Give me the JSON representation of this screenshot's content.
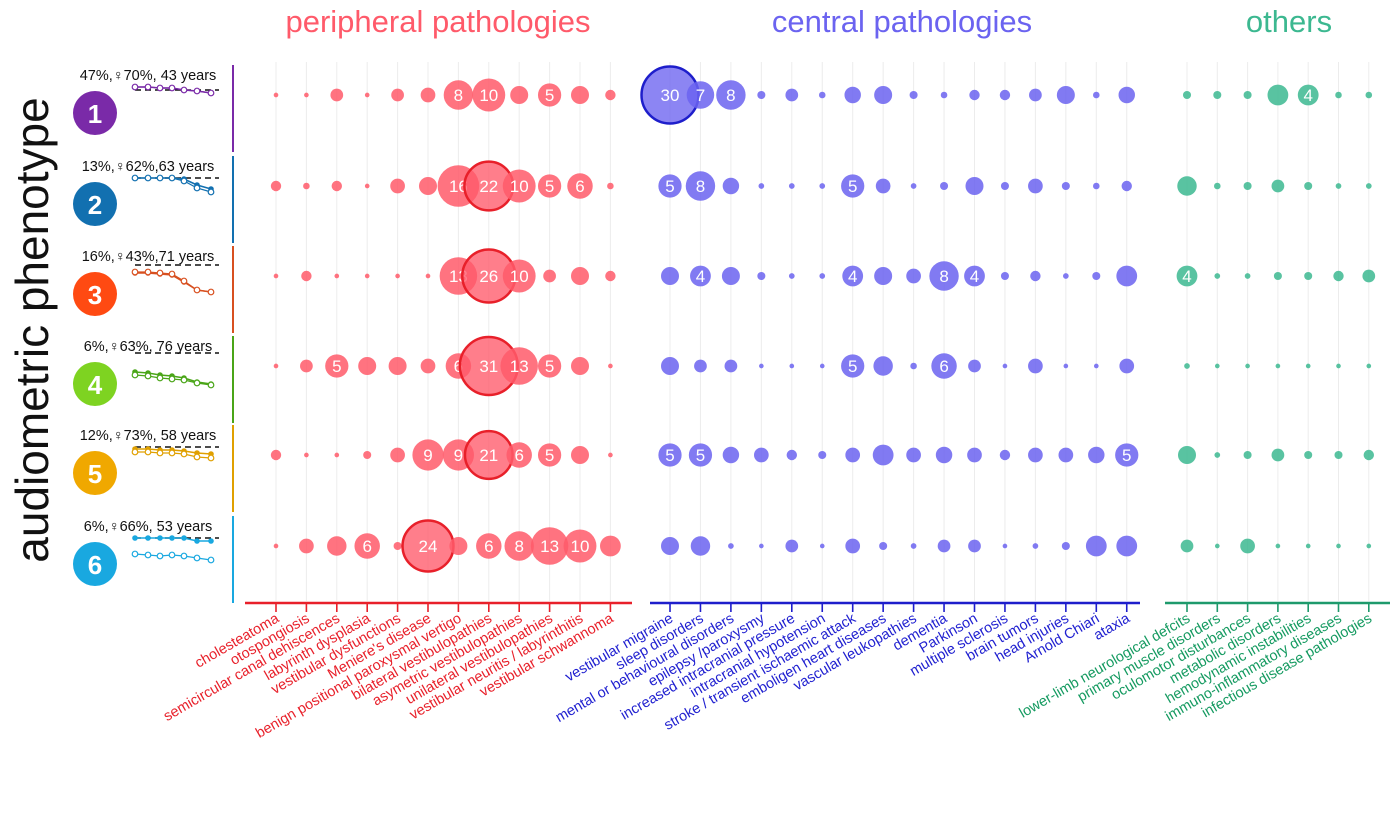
{
  "y_axis_title": "audiometric phenotype",
  "groups": [
    {
      "label": "peripheral pathologies",
      "color": "#ff5a6a",
      "axis_color": "#e8202a",
      "text_color": "#e8202a"
    },
    {
      "label": "central pathologies",
      "color": "#6b63f0",
      "axis_color": "#1e1ecb",
      "text_color": "#2020d0"
    },
    {
      "label": "others",
      "color": "#3cb890",
      "axis_color": "#1e9a6c",
      "text_color": "#149a60"
    }
  ],
  "phenotypes": [
    {
      "number": "1",
      "label": "47%,♀70%, 43 years",
      "color": "#7a2aa8",
      "line_color": "#7a2aa8",
      "hearing": {
        "ref_y": 3,
        "air": [
          0,
          0,
          1,
          1,
          3,
          4,
          6
        ],
        "bone": [
          0,
          0,
          1,
          1,
          3,
          4,
          6
        ]
      }
    },
    {
      "number": "2",
      "label": "13%,♀62%,63 years",
      "color": "#1270b0",
      "line_color": "#1270b0",
      "hearing": {
        "ref_y": 0,
        "air": [
          0,
          0,
          0,
          0,
          1,
          7,
          11
        ],
        "bone": [
          0,
          0,
          0,
          0,
          3,
          10,
          14
        ]
      }
    },
    {
      "number": "3",
      "label": "16%,♀43%,71 years",
      "color": "#ff4a12",
      "line_color": "#d85020",
      "hearing": {
        "ref_y": -3,
        "air": [
          5,
          5,
          6,
          7,
          14,
          22,
          24
        ],
        "bone": [
          4,
          4,
          5,
          6,
          13,
          22,
          24
        ]
      }
    },
    {
      "number": "4",
      "label": "6%,♀63%, 76 years",
      "color": "#7ed321",
      "line_color": "#4aa518",
      "hearing": {
        "ref_y": -5,
        "air": [
          14,
          15,
          17,
          18,
          20,
          24,
          26
        ],
        "bone": [
          17,
          18,
          20,
          21,
          22,
          25,
          27
        ]
      }
    },
    {
      "number": "5",
      "label": "12%,♀73%, 58 years",
      "color": "#f0a800",
      "line_color": "#e0a000",
      "hearing": {
        "ref_y": 0,
        "air": [
          2,
          2,
          3,
          3,
          4,
          6,
          7
        ],
        "bone": [
          5,
          5,
          6,
          6,
          7,
          10,
          11
        ]
      }
    },
    {
      "number": "6",
      "label": "6%,♀66%, 53 years",
      "color": "#19a8e0",
      "line_color": "#19a8e0",
      "hearing": {
        "ref_y": 0,
        "air": [
          0,
          0,
          0,
          0,
          0,
          3,
          3
        ],
        "bone": [
          16,
          17,
          18,
          17,
          18,
          20,
          22
        ]
      }
    }
  ],
  "chart_data": {
    "type": "scatter",
    "subtype": "bubble",
    "y_axis_label": "audiometric phenotype",
    "rows": [
      "1",
      "2",
      "3",
      "4",
      "5",
      "6"
    ],
    "grid": "vertical gridlines",
    "columns": [
      {
        "name": "cholesteatoma",
        "group": 0
      },
      {
        "name": "otospongiosis",
        "group": 0
      },
      {
        "name": "semicircular canal dehiscences",
        "group": 0
      },
      {
        "name": "labyrinth dysplasia",
        "group": 0
      },
      {
        "name": "vestibular dysfunctions",
        "group": 0
      },
      {
        "name": "Meniere's disease",
        "group": 0
      },
      {
        "name": "benign positional paroxysmal vertigo",
        "group": 0
      },
      {
        "name": "bilateral vestibulopathies",
        "group": 0
      },
      {
        "name": "asymetric vestibulopathies",
        "group": 0
      },
      {
        "name": "unilateral vestibulopathies",
        "group": 0
      },
      {
        "name": "vestibular neuritis / labyrinthitis",
        "group": 0
      },
      {
        "name": "vestibular schwannoma",
        "group": 0
      },
      {
        "name": "vestibular migraine",
        "group": 1
      },
      {
        "name": "sleep disorders",
        "group": 1
      },
      {
        "name": "mental or behavioural disorders",
        "group": 1
      },
      {
        "name": "epilepsy /paroxysmy",
        "group": 1
      },
      {
        "name": "increased intracranial pressure",
        "group": 1
      },
      {
        "name": "intracranial hypotension",
        "group": 1
      },
      {
        "name": "stroke / transient ischaemic attack",
        "group": 1
      },
      {
        "name": "emboligen heart diseases",
        "group": 1
      },
      {
        "name": "vascular leukopathies",
        "group": 1
      },
      {
        "name": "dementia",
        "group": 1
      },
      {
        "name": "Parkinson",
        "group": 1
      },
      {
        "name": "multiple sclerosis",
        "group": 1
      },
      {
        "name": "brain tumors",
        "group": 1
      },
      {
        "name": "head injuries",
        "group": 1
      },
      {
        "name": "Arnold Chiari",
        "group": 1
      },
      {
        "name": "ataxia",
        "group": 1
      },
      {
        "name": "lower-limb neurological defcits",
        "group": 2
      },
      {
        "name": "primary muscle disorders",
        "group": 2
      },
      {
        "name": "oculomotor disturbances",
        "group": 2
      },
      {
        "name": "metabolic disorders",
        "group": 2
      },
      {
        "name": "hemodynamic instabilities",
        "group": 2
      },
      {
        "name": "immuno-inflammatory diseases",
        "group": 2
      },
      {
        "name": "infectious disease pathologies",
        "group": 2
      }
    ],
    "values": [
      [
        0.2,
        0.2,
        1.5,
        0.2,
        1.5,
        2,
        8,
        10,
        3,
        5,
        3,
        1,
        30,
        7,
        8,
        0.6,
        1.5,
        0.4,
        2.5,
        3,
        0.6,
        0.4,
        1,
        1,
        1.5,
        3,
        0.4,
        2.5,
        0.6,
        0.6,
        0.6,
        4,
        4,
        0.4,
        0.4
      ],
      [
        1,
        0.4,
        1,
        0.2,
        2,
        3,
        16,
        22,
        10,
        5,
        6,
        0.4,
        5,
        8,
        2.5,
        0.3,
        0.3,
        0.3,
        5,
        2,
        0.3,
        0.6,
        3,
        0.6,
        2,
        0.6,
        0.4,
        1,
        3.5,
        0.4,
        0.6,
        1.5,
        0.6,
        0.3,
        0.3
      ],
      [
        0.2,
        1,
        0.2,
        0.2,
        0.2,
        0.2,
        13,
        26,
        10,
        1.5,
        3,
        1,
        3,
        4,
        3,
        0.6,
        0.3,
        0.3,
        4,
        3,
        2,
        8,
        4,
        0.6,
        1,
        0.3,
        0.6,
        4,
        4,
        0.3,
        0.3,
        0.6,
        0.6,
        1,
        1.5
      ],
      [
        0.2,
        1.5,
        5,
        3,
        3,
        2,
        6,
        31,
        13,
        5,
        3,
        0.2,
        3,
        1.5,
        1.5,
        0.2,
        0.2,
        0.2,
        5,
        3.5,
        0.4,
        6,
        1.5,
        0.2,
        2,
        0.2,
        0.2,
        2,
        0.3,
        0.2,
        0.2,
        0.2,
        0.2,
        0.2,
        0.2
      ],
      [
        1,
        0.2,
        0.2,
        0.6,
        2,
        9,
        9,
        21,
        6,
        5,
        3,
        0.2,
        5,
        5,
        2.5,
        2,
        1,
        0.6,
        2,
        4,
        2,
        2.5,
        2,
        1,
        2,
        2,
        2.5,
        5,
        3,
        0.3,
        0.6,
        1.5,
        0.6,
        0.6,
        1
      ],
      [
        0.2,
        2,
        3.5,
        6,
        0.6,
        24,
        3,
        6,
        8,
        13,
        10,
        4,
        3,
        3.5,
        0.3,
        0.2,
        1.5,
        0.2,
        2,
        0.6,
        0.3,
        1.5,
        1.5,
        0.2,
        0.3,
        0.6,
        4,
        4,
        1.5,
        0.2,
        2,
        0.2,
        0.2,
        0.2,
        0.2
      ]
    ],
    "labeled_values": [
      [
        null,
        null,
        null,
        null,
        null,
        null,
        8,
        10,
        null,
        5,
        null,
        null,
        30,
        7,
        8,
        null,
        null,
        null,
        null,
        null,
        null,
        null,
        null,
        null,
        null,
        null,
        null,
        null,
        null,
        null,
        null,
        null,
        4,
        null,
        null
      ],
      [
        null,
        null,
        null,
        null,
        null,
        null,
        16,
        22,
        10,
        5,
        6,
        null,
        5,
        8,
        null,
        null,
        null,
        null,
        5,
        null,
        null,
        null,
        null,
        null,
        null,
        null,
        null,
        null,
        null,
        null,
        null,
        null,
        null,
        null,
        null
      ],
      [
        null,
        null,
        null,
        null,
        null,
        null,
        13,
        26,
        10,
        null,
        null,
        null,
        null,
        4,
        null,
        null,
        null,
        null,
        4,
        null,
        null,
        8,
        4,
        null,
        null,
        null,
        null,
        null,
        4,
        null,
        null,
        null,
        null,
        null,
        null
      ],
      [
        null,
        null,
        5,
        null,
        null,
        null,
        6,
        31,
        13,
        5,
        null,
        null,
        null,
        null,
        null,
        null,
        null,
        null,
        5,
        null,
        null,
        6,
        null,
        null,
        null,
        null,
        null,
        null,
        null,
        null,
        null,
        null,
        null,
        null,
        null
      ],
      [
        null,
        null,
        null,
        null,
        null,
        9,
        9,
        21,
        6,
        5,
        null,
        null,
        5,
        5,
        null,
        null,
        null,
        null,
        null,
        null,
        null,
        null,
        null,
        null,
        null,
        null,
        null,
        5,
        null,
        null,
        null,
        null,
        null,
        null,
        null
      ],
      [
        null,
        null,
        null,
        6,
        null,
        24,
        null,
        6,
        8,
        13,
        10,
        null,
        null,
        null,
        null,
        null,
        null,
        null,
        null,
        null,
        null,
        null,
        null,
        null,
        null,
        null,
        null,
        null,
        null,
        null,
        null,
        null,
        null,
        null,
        null
      ]
    ],
    "outlined": [
      [
        0,
        12
      ],
      [
        1,
        7
      ],
      [
        2,
        7
      ],
      [
        3,
        7
      ],
      [
        4,
        7
      ],
      [
        5,
        5
      ]
    ]
  }
}
